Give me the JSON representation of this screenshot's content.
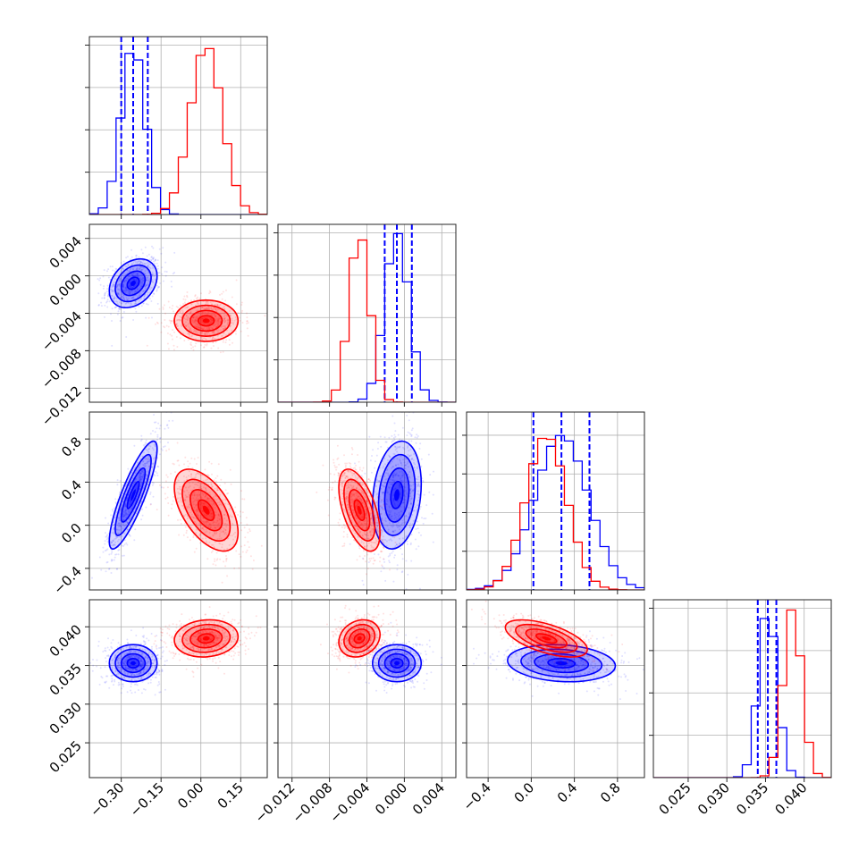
{
  "colors": {
    "blue": "#0000ff",
    "red": "#ff0000",
    "frame": "#262626",
    "grid": "#b0b0b0"
  },
  "chart_data": {
    "type": "corner",
    "parameters": [
      {
        "range": [
          -0.42,
          0.25
        ],
        "ticks": [
          -0.3,
          -0.15,
          0.0,
          0.15
        ],
        "tick_labels": [
          "−0.30",
          "−0.15",
          "0.00",
          "0.15"
        ]
      },
      {
        "range": [
          -0.0135,
          0.0055
        ],
        "ticks": [
          -0.012,
          -0.008,
          -0.004,
          0.0,
          0.004
        ],
        "tick_labels": [
          "−0.012",
          "−0.008",
          "−0.004",
          "0.000",
          "0.004"
        ]
      },
      {
        "range": [
          -0.6,
          1.05
        ],
        "ticks": [
          -0.4,
          0.0,
          0.4,
          0.8
        ],
        "tick_labels": [
          "−0.4",
          "0.0",
          "0.4",
          "0.8"
        ]
      },
      {
        "range": [
          0.0205,
          0.0435
        ],
        "ticks": [
          0.025,
          0.03,
          0.035,
          0.04
        ],
        "tick_labels": [
          "0.025",
          "0.030",
          "0.035",
          "0.040"
        ]
      }
    ],
    "series": [
      {
        "color": "blue",
        "means": [
          -0.255,
          -0.0008,
          0.28,
          0.0353
        ],
        "sds": [
          0.045,
          0.0013,
          0.25,
          0.0012
        ],
        "correlations": [
          [
            0,
            1,
            0.3
          ],
          [
            0,
            2,
            0.85
          ],
          [
            0,
            3,
            0.0
          ],
          [
            1,
            2,
            0.2
          ],
          [
            1,
            3,
            0.0
          ],
          [
            2,
            3,
            -0.15
          ]
        ],
        "quantiles": [
          [
            -0.3,
            -0.255,
            -0.2
          ],
          [
            -0.0021,
            -0.0008,
            0.0008
          ],
          [
            0.02,
            0.28,
            0.54
          ],
          [
            0.034,
            0.0353,
            0.0364
          ]
        ]
      },
      {
        "color": "red",
        "means": [
          0.02,
          -0.0048,
          0.14,
          0.0385
        ],
        "sds": [
          0.06,
          0.0011,
          0.19,
          0.0012
        ],
        "correlations": [
          [
            0,
            1,
            0.0
          ],
          [
            0,
            2,
            -0.55
          ],
          [
            0,
            3,
            0.1
          ],
          [
            1,
            2,
            -0.55
          ],
          [
            1,
            3,
            0.2
          ],
          [
            2,
            3,
            -0.6
          ]
        ]
      }
    ],
    "histogram_ylim": [
      [
        0,
        1.05
      ],
      [
        0,
        1.05
      ],
      [
        0,
        1.15
      ],
      [
        0,
        1.05
      ]
    ],
    "histogram_bins": 20,
    "contour_levels_sigma": [
      0.5,
      1.0,
      1.5,
      2.0
    ],
    "grid": true
  }
}
